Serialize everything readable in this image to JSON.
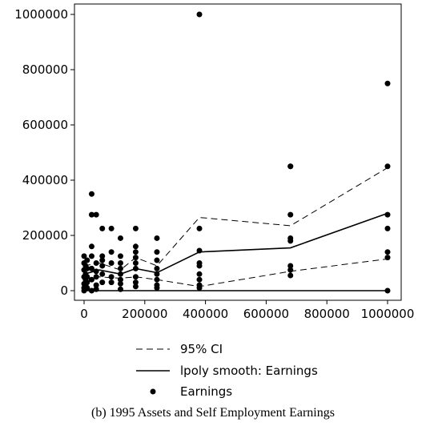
{
  "chart_data": {
    "type": "scatter",
    "caption": "(b) 1995 Assets and Self Employment Earnings",
    "xlim": [
      0,
      1000000
    ],
    "ylim": [
      0,
      1000000
    ],
    "xticks": [
      0,
      200000,
      400000,
      600000,
      800000,
      1000000
    ],
    "yticks": [
      0,
      200000,
      400000,
      600000,
      800000,
      1000000
    ],
    "yline": 0,
    "series": [
      {
        "name": "95% CI",
        "type": "ci",
        "color": "#000000",
        "x": [
          0,
          50000,
          120000,
          170000,
          240000,
          380000,
          680000,
          1000000
        ],
        "upper": [
          90000,
          100000,
          75000,
          120000,
          90000,
          265000,
          235000,
          445000
        ],
        "lower": [
          40000,
          50000,
          45000,
          50000,
          40000,
          15000,
          70000,
          115000
        ]
      },
      {
        "name": "lpoly smooth: Earnings",
        "type": "line",
        "color": "#000000",
        "x": [
          0,
          50000,
          120000,
          170000,
          240000,
          380000,
          680000,
          1000000
        ],
        "values": [
          60000,
          75000,
          60000,
          80000,
          65000,
          140000,
          155000,
          280000
        ]
      },
      {
        "name": "Earnings",
        "type": "scatter",
        "color": "#000000",
        "x": [
          380000,
          380000,
          380000,
          380000,
          380000,
          380000,
          380000,
          380000,
          380000,
          680000,
          680000,
          680000,
          680000,
          680000,
          680000,
          680000,
          680000,
          1000000,
          1000000,
          1000000,
          1000000,
          1000000,
          1000000,
          1000000,
          240000,
          240000,
          240000,
          240000,
          240000,
          240000,
          240000,
          240000,
          170000,
          170000,
          170000,
          170000,
          170000,
          170000,
          170000,
          170000,
          170000,
          120000,
          120000,
          120000,
          120000,
          120000,
          120000,
          120000,
          120000,
          90000,
          90000,
          90000,
          90000,
          90000,
          60000,
          60000,
          60000,
          60000,
          60000,
          60000,
          40000,
          40000,
          40000,
          40000,
          40000,
          40000,
          25000,
          25000,
          25000,
          25000,
          25000,
          25000,
          25000,
          10000,
          10000,
          10000,
          10000,
          10000,
          0,
          0,
          0,
          0,
          0,
          0,
          0,
          5000,
          5000,
          5000,
          5000
        ],
        "values": [
          1000000,
          225000,
          145000,
          100000,
          90000,
          60000,
          40000,
          20000,
          10000,
          450000,
          450000,
          275000,
          190000,
          180000,
          90000,
          75000,
          55000,
          750000,
          450000,
          275000,
          225000,
          140000,
          120000,
          0,
          190000,
          140000,
          110000,
          80000,
          60000,
          40000,
          20000,
          10000,
          225000,
          160000,
          140000,
          120000,
          100000,
          80000,
          50000,
          30000,
          15000,
          190000,
          125000,
          100000,
          80000,
          60000,
          40000,
          25000,
          5000,
          225000,
          140000,
          100000,
          50000,
          30000,
          225000,
          125000,
          110000,
          90000,
          60000,
          30000,
          275000,
          100000,
          70000,
          50000,
          20000,
          5000,
          350000,
          275000,
          160000,
          125000,
          80000,
          40000,
          0,
          110000,
          80000,
          50000,
          30000,
          10000,
          125000,
          100000,
          75000,
          50000,
          25000,
          10000,
          0,
          90000,
          60000,
          40000,
          20000
        ]
      }
    ]
  }
}
